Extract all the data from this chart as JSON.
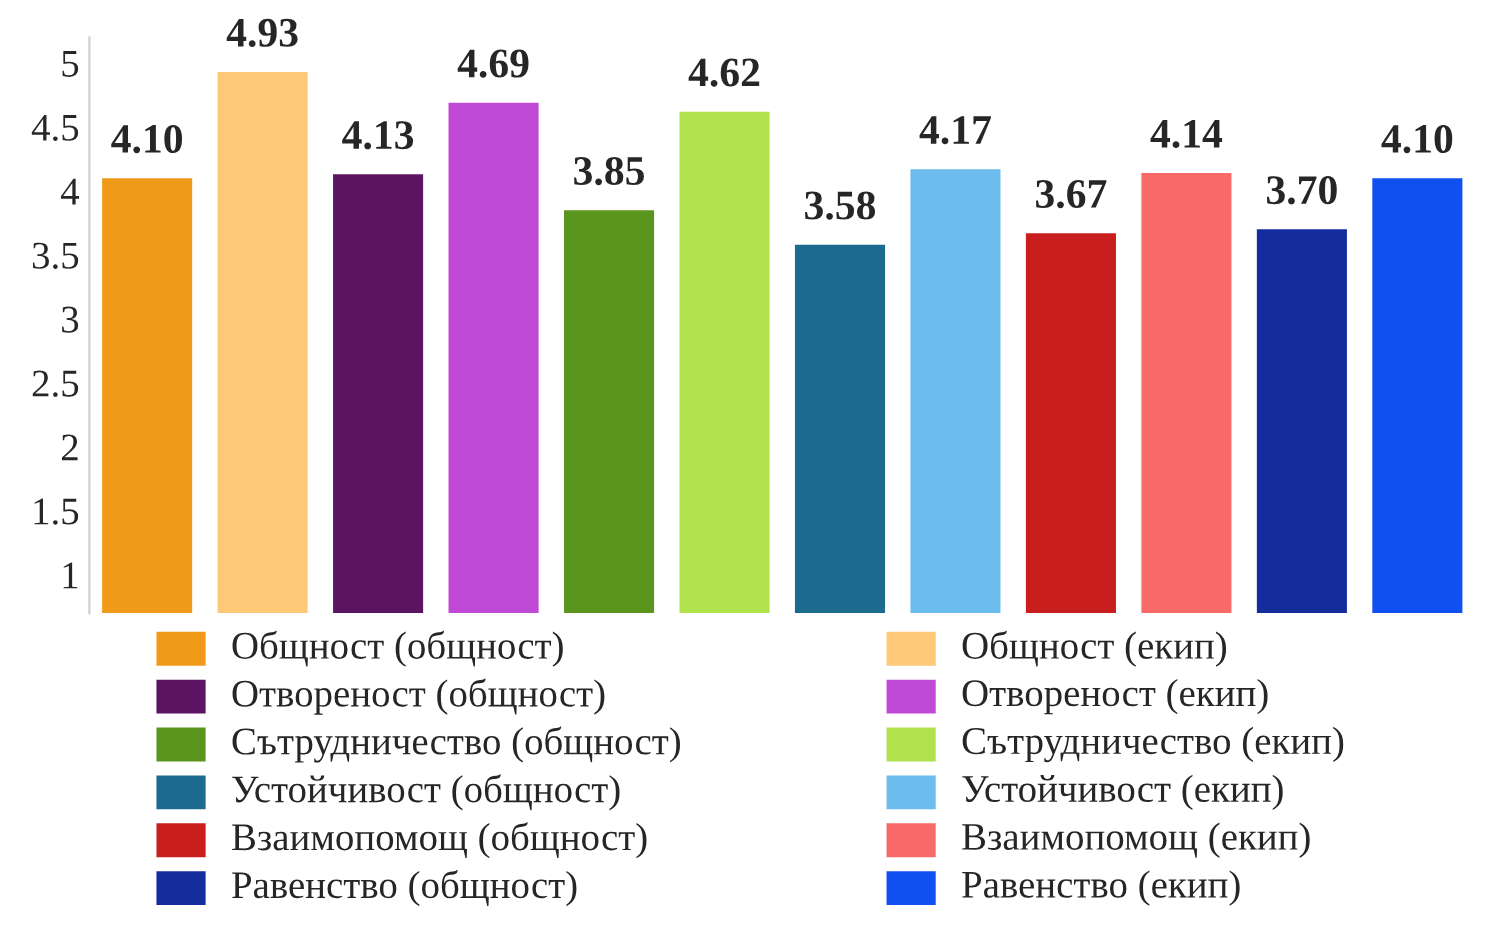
{
  "chart_data": [
    {
      "type": "bar",
      "categories": [
        null,
        null,
        null,
        null,
        null,
        null,
        null,
        null,
        null,
        null,
        null,
        null
      ],
      "values": [
        4.1,
        4.93,
        4.13,
        4.69,
        3.85,
        4.62,
        3.58,
        4.17,
        3.67,
        4.14,
        3.7,
        4.1
      ],
      "colors": [
        "#f09a1a",
        "#fdc878",
        "#5a1462",
        "#c04ad6",
        "#5a961e",
        "#b0e24e",
        "#1c6a8e",
        "#6cbcee",
        "#c81e1e",
        "#f86a6a",
        "#142c9c",
        "#1050f0"
      ],
      "ylim": [
        0.7,
        5.2
      ],
      "yticks": [
        1,
        1.5,
        2,
        2.5,
        3,
        3.5,
        4,
        4.5,
        5
      ],
      "value_labels": [
        "4.10",
        "4.93",
        "4.13",
        "4.69",
        "3.85",
        "4.62",
        "3.58",
        "4.17",
        "3.67",
        "4.14",
        "3.70",
        "4.10"
      ],
      "tick_labels": "y"
    },
    {
      "type": "other",
      "annotations": [
        "Общност (общност)",
        "Общност (екип)",
        "Отвореност (общност)",
        "Отвореност (екип)",
        "Сътрудничество (общност)",
        "Сътрудничество (екип)",
        "Устойчивост (общност)",
        "Устойчивост (екип)",
        "Взаимопомощ (общност)",
        "Взаимопомощ (екип)",
        "Равенство (общност)",
        "Равенство (екип)"
      ]
    }
  ]
}
